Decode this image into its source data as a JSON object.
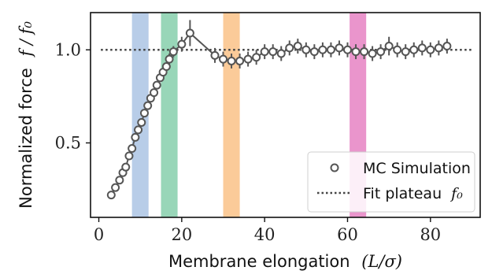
{
  "chart_data": {
    "type": "scatter",
    "xlabel": "Membrane elongation",
    "xlabel_math": "(L/σ)",
    "ylabel": "Normalized force",
    "ylabel_math": "f / f₀",
    "xlim": [
      -2,
      92
    ],
    "ylim": [
      0.1,
      1.2
    ],
    "xticks": [
      0,
      20,
      40,
      60,
      80
    ],
    "xtick_labels": [
      "0",
      "20",
      "40",
      "60",
      "80"
    ],
    "yticks": [
      0.5,
      1.0
    ],
    "ytick_labels": [
      "0.5",
      "1.0"
    ],
    "grid": false,
    "legend_position": "bottom-right",
    "plateau_value": 1.0,
    "bands": [
      {
        "x0": 8,
        "x1": 12,
        "color": "#b0c8e6"
      },
      {
        "x0": 15,
        "x1": 19,
        "color": "#8dd1b0"
      },
      {
        "x0": 30,
        "x1": 34,
        "color": "#fbc58e"
      },
      {
        "x0": 60.5,
        "x1": 64.5,
        "color": "#e889c6"
      }
    ],
    "series": [
      {
        "name": "MC Simulation",
        "x": [
          3,
          4,
          5,
          5.8,
          6.5,
          7.3,
          8,
          8.8,
          9.5,
          10.3,
          11,
          11.8,
          12.5,
          13.3,
          14,
          14.8,
          15.5,
          16.3,
          17,
          18,
          20,
          22,
          28,
          30,
          32,
          34,
          36,
          38,
          40,
          42,
          44,
          46,
          48,
          50,
          52,
          54,
          56,
          58,
          60,
          62,
          64,
          66,
          68,
          70,
          72,
          74,
          76,
          78,
          80,
          82,
          84
        ],
        "y": [
          0.22,
          0.26,
          0.3,
          0.34,
          0.37,
          0.43,
          0.47,
          0.53,
          0.57,
          0.61,
          0.66,
          0.7,
          0.74,
          0.77,
          0.81,
          0.85,
          0.88,
          0.91,
          0.95,
          0.99,
          1.03,
          1.09,
          0.97,
          0.95,
          0.94,
          0.94,
          0.95,
          0.96,
          0.99,
          0.99,
          0.98,
          1.01,
          1.02,
          1.0,
          0.99,
          1.0,
          1.0,
          1.01,
          1.0,
          0.99,
          0.99,
          0.98,
          0.99,
          1.02,
          1.0,
          0.99,
          1.0,
          1.01,
          1.0,
          1.01,
          1.02
        ],
        "err": [
          0.02,
          0.02,
          0.02,
          0.02,
          0.02,
          0.02,
          0.02,
          0.02,
          0.02,
          0.02,
          0.02,
          0.02,
          0.02,
          0.02,
          0.02,
          0.02,
          0.02,
          0.02,
          0.03,
          0.03,
          0.04,
          0.07,
          0.04,
          0.04,
          0.04,
          0.04,
          0.04,
          0.04,
          0.04,
          0.04,
          0.04,
          0.04,
          0.04,
          0.04,
          0.04,
          0.04,
          0.04,
          0.04,
          0.04,
          0.04,
          0.04,
          0.04,
          0.04,
          0.05,
          0.04,
          0.04,
          0.04,
          0.04,
          0.04,
          0.04,
          0.04
        ]
      },
      {
        "name": "Fit plateau",
        "name_math": "f₀",
        "y": 1.0
      }
    ]
  }
}
